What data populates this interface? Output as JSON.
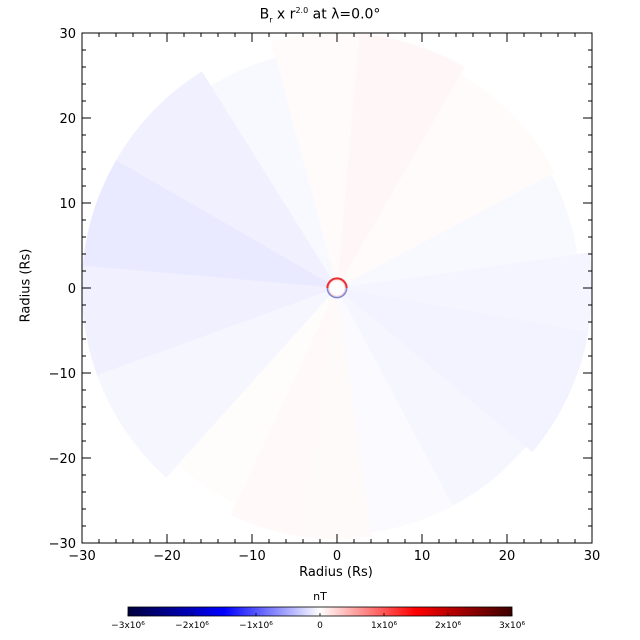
{
  "chart_data": {
    "type": "heatmap",
    "title_main": "B",
    "title_sub": "r",
    "title_mid": " x r",
    "title_exp": "2.0",
    "title_tail": " at λ=0.0°",
    "xlabel": "Radius (Rs)",
    "ylabel": "Radius (Rs)",
    "xlim": [
      -30,
      30
    ],
    "ylim": [
      -30,
      30
    ],
    "xticks": [
      "−30",
      "−20",
      "−10",
      "0",
      "10",
      "20",
      "30"
    ],
    "yticks": [
      "−30",
      "−20",
      "−10",
      "0",
      "10",
      "20",
      "30"
    ],
    "xtick_values": [
      -30,
      -20,
      -10,
      0,
      10,
      20,
      30
    ],
    "ytick_values": [
      -30,
      -20,
      -10,
      0,
      10,
      20,
      30
    ],
    "colorbar": {
      "label": "nT",
      "range": [
        -3000000,
        3000000
      ],
      "tick_values": [
        -3000000,
        -2000000,
        -1000000,
        0,
        1000000,
        2000000,
        3000000
      ],
      "tick_labels": [
        "−3x10⁶",
        "−2x10⁶",
        "−1x10⁶",
        "0",
        "1x10⁶",
        "2x10⁶",
        "3x10⁶"
      ],
      "colors": [
        "#00003c",
        "#0000ff",
        "#ffffff",
        "#ff0000",
        "#3c0000"
      ]
    },
    "sectors": [
      {
        "start_deg": -10,
        "end_deg": 8,
        "r_max": 30,
        "value": -60000
      },
      {
        "start_deg": 8,
        "end_deg": 28,
        "r_max": 28.5,
        "value": -40000
      },
      {
        "start_deg": 28,
        "end_deg": 60,
        "r_max": 29,
        "value": 25000
      },
      {
        "start_deg": 60,
        "end_deg": 85,
        "r_max": 30,
        "value": 45000
      },
      {
        "start_deg": 85,
        "end_deg": 105,
        "r_max": 30,
        "value": 25000
      },
      {
        "start_deg": 105,
        "end_deg": 122,
        "r_max": 28,
        "value": -40000
      },
      {
        "start_deg": 122,
        "end_deg": 150,
        "r_max": 30,
        "value": -90000
      },
      {
        "start_deg": 150,
        "end_deg": 175,
        "r_max": 30,
        "value": -130000
      },
      {
        "start_deg": 175,
        "end_deg": 200,
        "r_max": 30,
        "value": -90000
      },
      {
        "start_deg": 200,
        "end_deg": 228,
        "r_max": 30,
        "value": -55000
      },
      {
        "start_deg": 228,
        "end_deg": 245,
        "r_max": 28,
        "value": 20000
      },
      {
        "start_deg": 245,
        "end_deg": 262,
        "r_max": 29.5,
        "value": 35000
      },
      {
        "start_deg": 262,
        "end_deg": 278,
        "r_max": 29.5,
        "value": 30000
      },
      {
        "start_deg": 278,
        "end_deg": 298,
        "r_max": 29,
        "value": -25000
      },
      {
        "start_deg": 298,
        "end_deg": 320,
        "r_max": 29,
        "value": -50000
      },
      {
        "start_deg": 320,
        "end_deg": 350,
        "r_max": 30,
        "value": -70000
      }
    ],
    "inner_radius": 0.9
  }
}
